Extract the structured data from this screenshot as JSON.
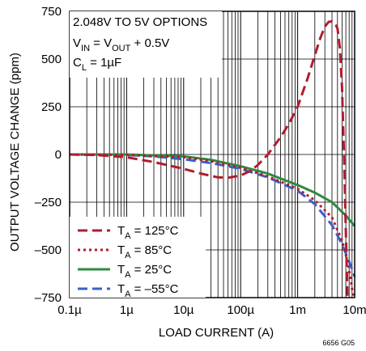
{
  "chart_data": {
    "type": "line",
    "xlabel": "LOAD CURRENT (A)",
    "ylabel": "OUTPUT VOLTAGE CHANGE (ppm)",
    "x_scale": "log",
    "xlim": [
      1e-07,
      0.01
    ],
    "ylim": [
      -750,
      750
    ],
    "grid": true,
    "legend_position": "bottom-left",
    "x_ticks": [
      {
        "value": 1e-07,
        "label": "0.1µ"
      },
      {
        "value": 1e-06,
        "label": "1µ"
      },
      {
        "value": 1e-05,
        "label": "10µ"
      },
      {
        "value": 0.0001,
        "label": "100µ"
      },
      {
        "value": 0.001,
        "label": "1m"
      },
      {
        "value": 0.01,
        "label": "10m"
      }
    ],
    "y_ticks": [
      {
        "value": 750,
        "label": "750"
      },
      {
        "value": 500,
        "label": "500"
      },
      {
        "value": 250,
        "label": "250"
      },
      {
        "value": 0,
        "label": "0"
      },
      {
        "value": -250,
        "label": "–250"
      },
      {
        "value": -500,
        "label": "–500"
      },
      {
        "value": -750,
        "label": "–750"
      }
    ],
    "annotations": [
      {
        "line1": "2.048V TO 5V OPTIONS"
      },
      {
        "line2_pre": "V",
        "line2_sub1": "IN",
        "line2_mid": " = V",
        "line2_sub2": "OUT",
        "line2_post": " + 0.5V"
      },
      {
        "line3_pre": "C",
        "line3_sub": "L",
        "line3_post": " = 1µF"
      }
    ],
    "series": [
      {
        "legend_pre": "T",
        "legend_sub": "A",
        "legend_post": " = 125°C",
        "color": "#b01c2e",
        "dash": "12,6",
        "x": [
          1e-07,
          3e-07,
          1e-06,
          3e-06,
          1e-05,
          2e-05,
          4e-05,
          6e-05,
          0.0001,
          0.00015,
          0.0002,
          0.0003,
          0.0005,
          0.0007,
          0.001,
          0.0015,
          0.002,
          0.0025,
          0.003,
          0.0035,
          0.004,
          0.0045,
          0.005,
          0.0055,
          0.006,
          0.0065,
          0.007,
          0.0075
        ],
        "y": [
          0,
          -3,
          -15,
          -40,
          -75,
          -100,
          -120,
          -122,
          -110,
          -85,
          -55,
          0,
          90,
          160,
          250,
          400,
          520,
          610,
          670,
          695,
          697,
          690,
          660,
          560,
          350,
          0,
          -400,
          -750
        ]
      },
      {
        "legend_pre": "T",
        "legend_sub": "A",
        "legend_post": " = 85°C",
        "color": "#b01c2e",
        "dash": "3,4",
        "x": [
          1e-07,
          1e-06,
          1e-05,
          3e-05,
          0.0001,
          0.0003,
          0.001,
          0.002,
          0.004,
          0.006,
          0.0075,
          0.0085,
          0.0095
        ],
        "y": [
          0,
          -2,
          -15,
          -35,
          -70,
          -115,
          -180,
          -240,
          -330,
          -450,
          -560,
          -650,
          -750
        ]
      },
      {
        "legend_pre": "T",
        "legend_sub": "A",
        "legend_post": " = 25°C",
        "color": "#2e8b3e",
        "dash": "",
        "x": [
          1e-07,
          1e-06,
          1e-05,
          3e-05,
          0.0001,
          0.0003,
          0.001,
          0.002,
          0.004,
          0.007,
          0.01
        ],
        "y": [
          0,
          0,
          -10,
          -28,
          -62,
          -100,
          -160,
          -200,
          -250,
          -320,
          -375
        ]
      },
      {
        "legend_pre": "T",
        "legend_sub": "A",
        "legend_post": " = –55°C",
        "color": "#3a5fcd",
        "dash": "12,6",
        "x": [
          1e-07,
          1e-06,
          3e-06,
          1e-05,
          3e-05,
          0.0001,
          0.0003,
          0.001,
          0.002,
          0.004,
          0.006,
          0.008,
          0.01
        ],
        "y": [
          0,
          -3,
          -10,
          -25,
          -45,
          -75,
          -120,
          -190,
          -260,
          -370,
          -470,
          -560,
          -640
        ]
      }
    ],
    "figure_id": "6656 G05"
  }
}
